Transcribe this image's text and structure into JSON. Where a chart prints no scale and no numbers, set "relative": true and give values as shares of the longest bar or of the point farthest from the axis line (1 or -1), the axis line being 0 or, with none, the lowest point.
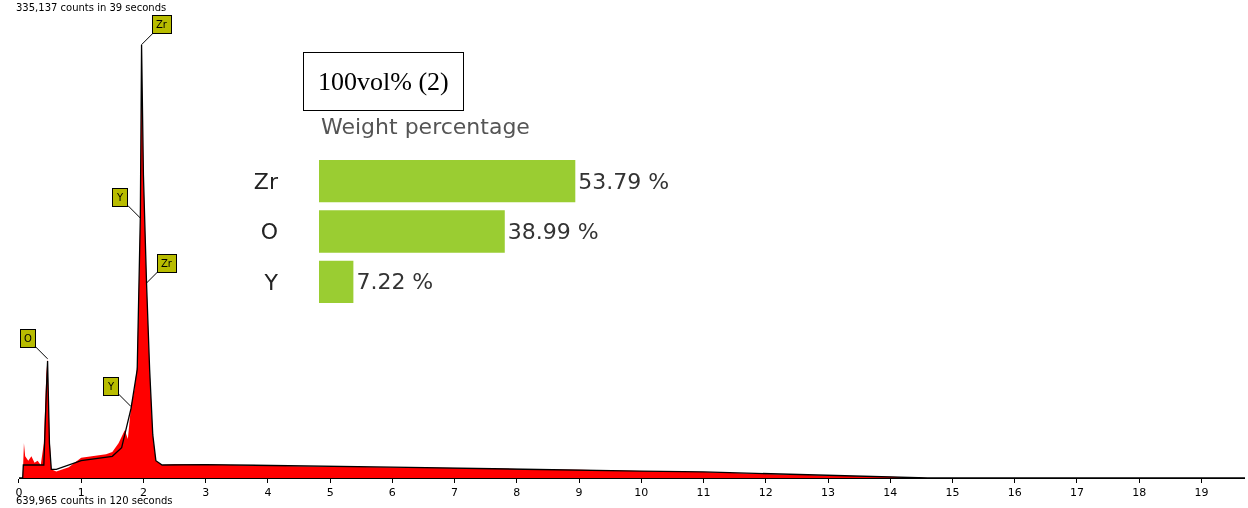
{
  "chart_data": [
    {
      "type": "area",
      "relative": true,
      "tick_labels": "x",
      "xlim": [
        0,
        19.7
      ],
      "xticks": [
        0,
        1,
        2,
        3,
        4,
        5,
        6,
        7,
        8,
        9,
        10,
        11,
        12,
        13,
        14,
        15,
        16,
        17,
        18,
        19
      ],
      "annotations": [
        "335,137 counts in 39 seconds",
        "639,965 counts in 120 seconds",
        {
          "text": "Zr",
          "x": 1.97,
          "y": 1.0
        },
        {
          "text": "Zr",
          "x": 2.05,
          "y": 0.45
        },
        {
          "text": "Y",
          "x": 1.95,
          "y": 0.6
        },
        {
          "text": "O",
          "x": 0.46,
          "y": 0.275
        },
        {
          "text": "Y",
          "x": 1.8,
          "y": 0.165
        }
      ],
      "series": [
        {
          "color": "#ff0000",
          "x": [
            0,
            0.06,
            0.08,
            0.1,
            0.15,
            0.2,
            0.25,
            0.3,
            0.35,
            0.4,
            0.44,
            0.46,
            0.49,
            0.52,
            0.6,
            0.8,
            1.0,
            1.4,
            1.5,
            1.6,
            1.7,
            1.75,
            1.8,
            1.85,
            1.9,
            1.95,
            1.97,
            2.0,
            2.05,
            2.1,
            2.15,
            2.2,
            2.3,
            2.5,
            3,
            4,
            5,
            6,
            7,
            8,
            9,
            10,
            11,
            12,
            13,
            14,
            14.6,
            19.7
          ],
          "values": [
            0,
            0,
            0.08,
            0.05,
            0.04,
            0.05,
            0.035,
            0.04,
            0.03,
            0.08,
            0.24,
            0.275,
            0.1,
            0.02,
            0.015,
            0.025,
            0.047,
            0.055,
            0.06,
            0.08,
            0.11,
            0.09,
            0.165,
            0.2,
            0.26,
            0.6,
            0.97,
            0.7,
            0.45,
            0.25,
            0.1,
            0.04,
            0.03,
            0.032,
            0.031,
            0.028,
            0.026,
            0.025,
            0.023,
            0.021,
            0.019,
            0.016,
            0.014,
            0.009,
            0.006,
            0.003,
            0,
            0
          ]
        },
        {
          "type": "line",
          "color": "#000000",
          "x": [
            0,
            0.06,
            0.07,
            0.4,
            0.44,
            0.46,
            0.49,
            0.52,
            0.6,
            1.0,
            1.5,
            1.65,
            1.8,
            1.9,
            1.95,
            1.97,
            2.0,
            2.05,
            2.1,
            2.15,
            2.2,
            2.3,
            3,
            6,
            10,
            11,
            14.6,
            19.7
          ],
          "values": [
            0,
            0,
            0.03,
            0.03,
            0.2,
            0.27,
            0.08,
            0.02,
            0.02,
            0.04,
            0.05,
            0.07,
            0.16,
            0.25,
            0.6,
            1.0,
            0.7,
            0.45,
            0.25,
            0.1,
            0.04,
            0.03,
            0.031,
            0.025,
            0.016,
            0.014,
            0,
            0
          ]
        }
      ]
    },
    {
      "type": "bar",
      "orientation": "horizontal",
      "title": "Weight percentage",
      "categories": [
        "Zr",
        "O",
        "Y"
      ],
      "values": [
        53.79,
        38.99,
        7.22
      ],
      "value_labels": [
        "53.79 %",
        "38.99 %",
        "7.22 %"
      ],
      "color": "#9acd32",
      "tick_labels": "y",
      "annotations": [
        "100vol% (2)"
      ]
    }
  ]
}
